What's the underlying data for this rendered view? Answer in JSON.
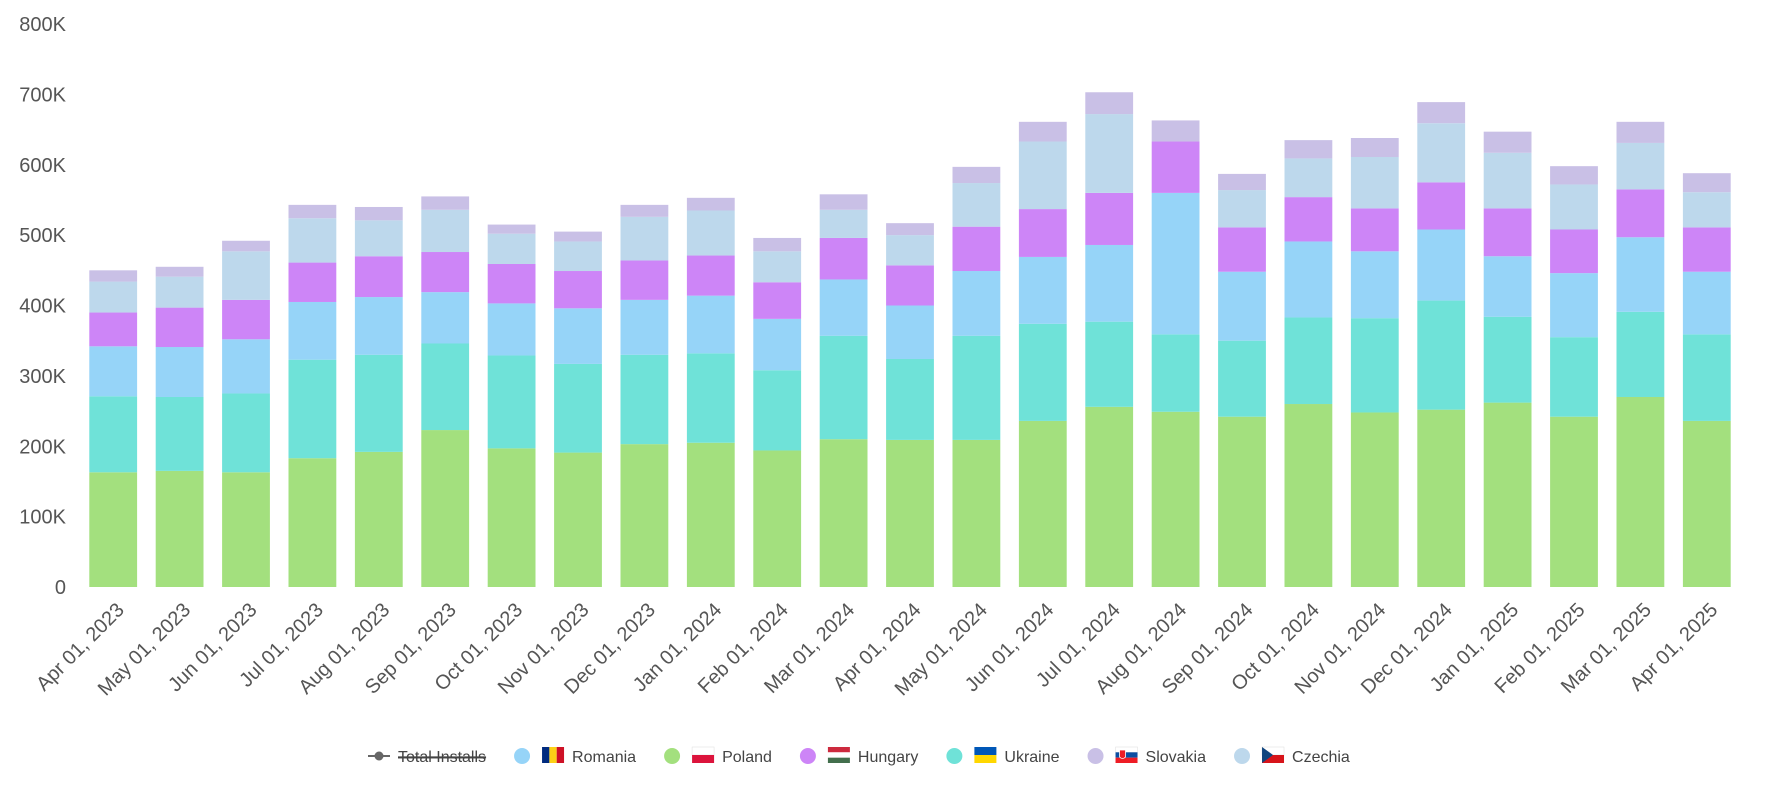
{
  "chart_data": {
    "type": "bar",
    "stacked": true,
    "title": "",
    "xlabel": "",
    "ylabel": "",
    "ylim": [
      0,
      800000
    ],
    "y_ticks": [
      "0",
      "100K",
      "200K",
      "300K",
      "400K",
      "500K",
      "600K",
      "700K",
      "800K"
    ],
    "y_tick_values": [
      0,
      100000,
      200000,
      300000,
      400000,
      500000,
      600000,
      700000,
      800000
    ],
    "grid": false,
    "legend_position": "bottom",
    "categories": [
      "Apr 01, 2023",
      "May 01, 2023",
      "Jun 01, 2023",
      "Jul 01, 2023",
      "Aug 01, 2023",
      "Sep 01, 2023",
      "Oct 01, 2023",
      "Nov 01, 2023",
      "Dec 01, 2023",
      "Jan 01, 2024",
      "Feb 01, 2024",
      "Mar 01, 2024",
      "Apr 01, 2024",
      "May 01, 2024",
      "Jun 01, 2024",
      "Jul 01, 2024",
      "Aug 01, 2024",
      "Sep 01, 2024",
      "Oct 01, 2024",
      "Nov 01, 2024",
      "Dec 01, 2024",
      "Jan 01, 2025",
      "Feb 01, 2025",
      "Mar 01, 2025",
      "Apr 01, 2025"
    ],
    "series": [
      {
        "name": "Poland",
        "color": "#a3e07e",
        "values": [
          163000,
          165000,
          163000,
          183000,
          192000,
          223000,
          197000,
          191000,
          203000,
          205000,
          194000,
          210000,
          209000,
          209000,
          236000,
          256000,
          249000,
          242000,
          260000,
          248000,
          252000,
          262000,
          242000,
          270000,
          236000
        ]
      },
      {
        "name": "Ukraine",
        "color": "#6fe2d8",
        "values": [
          108000,
          105000,
          112000,
          140000,
          138000,
          123000,
          132000,
          126000,
          127000,
          127000,
          114000,
          147000,
          115000,
          148000,
          138000,
          121000,
          110000,
          108000,
          123000,
          134000,
          155000,
          122000,
          113000,
          121000,
          123000
        ]
      },
      {
        "name": "Romania",
        "color": "#96d4f8",
        "values": [
          71000,
          71000,
          77000,
          82000,
          82000,
          73000,
          74000,
          79000,
          78000,
          82000,
          73000,
          80000,
          76000,
          92000,
          95000,
          109000,
          201000,
          98000,
          108000,
          95000,
          101000,
          86000,
          91000,
          106000,
          89000
        ]
      },
      {
        "name": "Hungary",
        "color": "#cd85f7",
        "values": [
          48000,
          56000,
          56000,
          56000,
          58000,
          57000,
          56000,
          53000,
          56000,
          57000,
          52000,
          59000,
          57000,
          63000,
          68000,
          74000,
          73000,
          63000,
          63000,
          61000,
          67000,
          68000,
          62000,
          68000,
          63000
        ]
      },
      {
        "name": "Czechia",
        "color": "#bdd8ec",
        "values": [
          44000,
          44000,
          69000,
          63000,
          51000,
          60000,
          43000,
          42000,
          62000,
          64000,
          44000,
          40000,
          43000,
          62000,
          96000,
          112000,
          0,
          53000,
          55000,
          73000,
          84000,
          79000,
          64000,
          66000,
          50000
        ]
      },
      {
        "name": "Slovakia",
        "color": "#c9c0e6",
        "values": [
          16000,
          14000,
          15000,
          19000,
          19000,
          19000,
          13000,
          14000,
          17000,
          18000,
          19000,
          22000,
          17000,
          23000,
          28000,
          31000,
          30000,
          23000,
          26000,
          27000,
          30000,
          30000,
          26000,
          30000,
          27000
        ]
      }
    ]
  },
  "legend": {
    "items": [
      {
        "label": "Total Installs",
        "marker_color": "#666666",
        "marker": "line-dot",
        "flag": "",
        "disabled": true
      },
      {
        "label": "Romania",
        "marker_color": "#96d4f8",
        "marker": "circle",
        "flag": "romania-flag",
        "disabled": false
      },
      {
        "label": "Poland",
        "marker_color": "#a3e07e",
        "marker": "circle",
        "flag": "poland-flag",
        "disabled": false
      },
      {
        "label": "Hungary",
        "marker_color": "#cd85f7",
        "marker": "circle",
        "flag": "hungary-flag",
        "disabled": false
      },
      {
        "label": "Ukraine",
        "marker_color": "#6fe2d8",
        "marker": "circle",
        "flag": "ukraine-flag",
        "disabled": false
      },
      {
        "label": "Slovakia",
        "marker_color": "#c9c0e6",
        "marker": "circle",
        "flag": "slovakia-flag",
        "disabled": false
      },
      {
        "label": "Czechia",
        "marker_color": "#bdd8ec",
        "marker": "circle",
        "flag": "czechia-flag",
        "disabled": false
      }
    ]
  }
}
